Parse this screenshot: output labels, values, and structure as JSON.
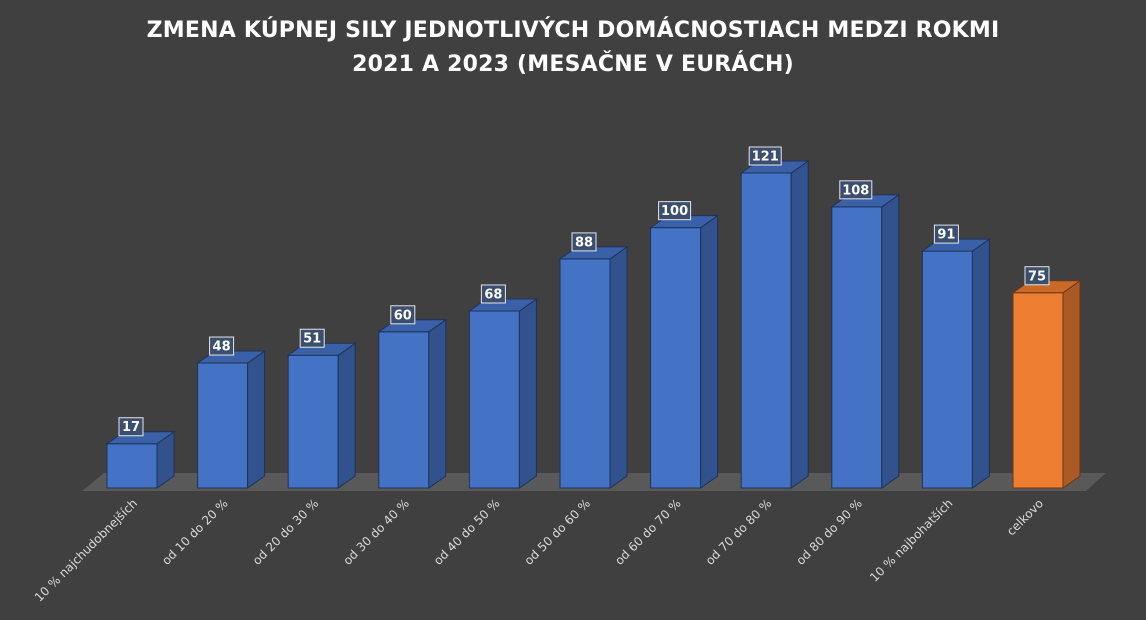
{
  "chart_data": {
    "type": "bar",
    "title": "ZMENA KÚPNEJ SILY JEDNOTLIVÝCH DOMÁCNOSTIACH MEDZI ROKMI 2021 A 2023 (MESAČNE V EURÁCH)",
    "title_lines": [
      "ZMENA KÚPNEJ SILY JEDNOTLIVÝCH DOMÁCNOSTIACH MEDZI ROKMI",
      "2021 A 2023 (MESAČNE V EURÁCH)"
    ],
    "categories": [
      "10 % najchudobnejších",
      "od 10 do 20 %",
      "od 20 do 30 %",
      "od 30 do 40 %",
      "od 40 do 50 %",
      "od 50 do 60 %",
      "od 60 do 70 %",
      "od 70 do 80 %",
      "od 80 do 90 %",
      "10 % najbohatších",
      "celkovo"
    ],
    "values": [
      17,
      48,
      51,
      60,
      68,
      88,
      100,
      121,
      108,
      91,
      75
    ],
    "data_labels": [
      "17",
      "48",
      "51",
      "60",
      "68",
      "88",
      "100",
      "121",
      "108",
      "91",
      "75"
    ],
    "xlabel": "",
    "ylabel": "",
    "ylim": [
      0,
      121
    ],
    "grid": false,
    "legend": "none",
    "style": "3d-column",
    "colors": {
      "bar": "#4472c4",
      "highlight_bar": "#ed7d31",
      "highlight_category": "celkovo",
      "background": "#404040",
      "floor": "#595959"
    }
  }
}
